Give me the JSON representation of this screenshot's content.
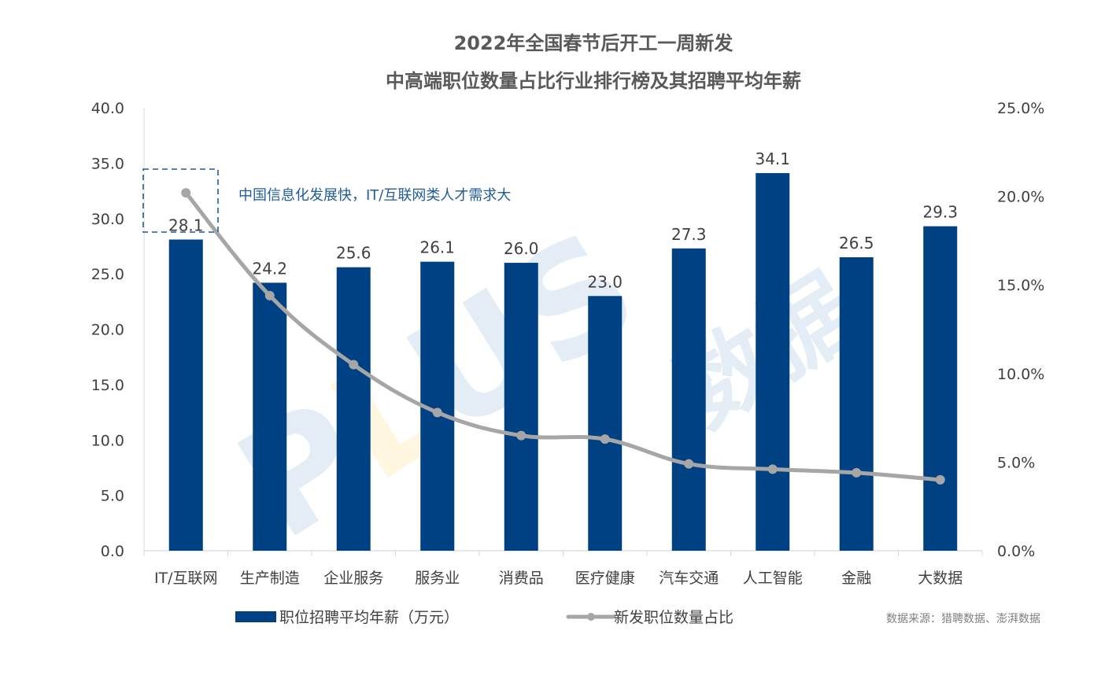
{
  "chart_data": {
    "type": "bar+line",
    "title_line1": "2022年全国春节后开工一周新发",
    "title_line2": "中高端职位数量占比行业排行榜及其招聘平均年薪",
    "categories": [
      "IT/互联网",
      "生产制造",
      "企业服务",
      "服务业",
      "消费品",
      "医疗健康",
      "汽车交通",
      "人工智能",
      "金融",
      "大数据"
    ],
    "series": [
      {
        "name": "职位招聘平均年薪（万元）",
        "type": "bar",
        "axis": "left",
        "color": "#004184",
        "values": [
          28.1,
          24.2,
          25.6,
          26.1,
          26.0,
          23.0,
          27.3,
          34.1,
          26.5,
          29.3
        ],
        "labels": [
          "28.1",
          "24.2",
          "25.6",
          "26.1",
          "26.0",
          "23.0",
          "27.3",
          "34.1",
          "26.5",
          "29.3"
        ]
      },
      {
        "name": "新发职位数量占比",
        "type": "line",
        "axis": "right",
        "color": "#a6a6a6",
        "values": [
          20.2,
          14.4,
          10.5,
          7.8,
          6.5,
          6.3,
          4.9,
          4.6,
          4.4,
          4.0
        ]
      }
    ],
    "y_left": {
      "min": 0,
      "max": 40,
      "ticks": [
        "0.0",
        "5.0",
        "10.0",
        "15.0",
        "20.0",
        "25.0",
        "30.0",
        "35.0",
        "40.0"
      ]
    },
    "y_right": {
      "min": 0,
      "max": 25,
      "ticks": [
        "0.0%",
        "5.0%",
        "10.0%",
        "15.0%",
        "20.0%",
        "25.0%"
      ]
    },
    "annotation": "中国信息化发展快，IT/互联网类人才需求大",
    "source": "数据来源：猎聘数据、澎湃数据",
    "watermark_latin": "PLUS",
    "watermark_cjk": "数据",
    "grid": false,
    "legend_position": "bottom"
  }
}
